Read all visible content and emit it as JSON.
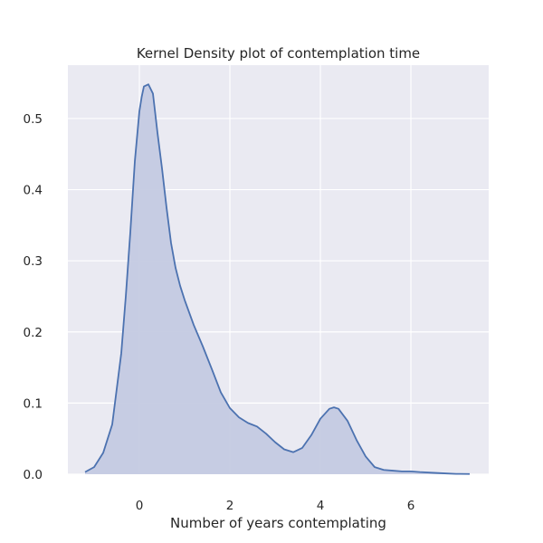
{
  "chart_data": {
    "type": "area",
    "title": "Kernel Density plot of contemplation time",
    "xlabel": "Number of years contemplating",
    "ylabel": "",
    "xlim": [
      -1.58,
      7.72
    ],
    "ylim": [
      0,
      0.575
    ],
    "xticks": [
      0,
      2,
      4,
      6
    ],
    "yticks": [
      0.0,
      0.1,
      0.2,
      0.3,
      0.4,
      0.5
    ],
    "grid": true,
    "legend": "none",
    "colors": {
      "background": "#EAEAF2",
      "grid": "#FFFFFF",
      "line": "#4C72B0",
      "fill": "#C4CAE1",
      "text": "#262626"
    },
    "series": [
      {
        "x": [
          -1.2,
          -1.0,
          -0.8,
          -0.6,
          -0.4,
          -0.3,
          -0.2,
          -0.1,
          0.0,
          0.05,
          0.1,
          0.2,
          0.3,
          0.4,
          0.5,
          0.6,
          0.7,
          0.8,
          0.9,
          1.0,
          1.2,
          1.4,
          1.6,
          1.8,
          2.0,
          2.2,
          2.4,
          2.6,
          2.8,
          3.0,
          3.2,
          3.4,
          3.6,
          3.8,
          4.0,
          4.2,
          4.3,
          4.4,
          4.6,
          4.8,
          5.0,
          5.2,
          5.4,
          5.6,
          5.8,
          6.0,
          6.2,
          6.5,
          6.8,
          7.0,
          7.3
        ],
        "y": [
          0.003,
          0.01,
          0.03,
          0.07,
          0.17,
          0.25,
          0.34,
          0.44,
          0.51,
          0.53,
          0.545,
          0.548,
          0.535,
          0.48,
          0.43,
          0.375,
          0.325,
          0.29,
          0.265,
          0.245,
          0.21,
          0.18,
          0.148,
          0.115,
          0.093,
          0.08,
          0.072,
          0.067,
          0.057,
          0.045,
          0.035,
          0.031,
          0.037,
          0.055,
          0.078,
          0.092,
          0.094,
          0.092,
          0.075,
          0.048,
          0.025,
          0.01,
          0.006,
          0.005,
          0.004,
          0.004,
          0.003,
          0.002,
          0.001,
          0.0005,
          0.0003
        ]
      }
    ]
  }
}
